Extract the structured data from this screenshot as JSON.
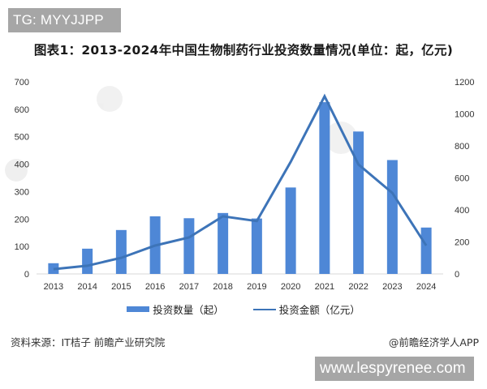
{
  "badges": {
    "top_left": "TG: MYYJJPP",
    "bottom_right": "www.lespyrenee.com"
  },
  "title": "图表1：2013-2024年中国生物制药行业投资数量情况(单位：起，亿元)",
  "footer": {
    "source": "资料来源：IT桔子 前瞻产业研究院",
    "credit": "@前瞻经济学人APP"
  },
  "legend": {
    "bar_label": "投资数量（起）",
    "line_label": "投资金额（亿元）"
  },
  "colors": {
    "bar": "#4e87d6",
    "line": "#3d74b8",
    "axis": "#d9d9d9"
  },
  "chart_data": {
    "type": "bar+line",
    "title": "图表1：2013-2024年中国生物制药行业投资数量情况(单位：起，亿元)",
    "categories": [
      "2013",
      "2014",
      "2015",
      "2016",
      "2017",
      "2018",
      "2019",
      "2020",
      "2021",
      "2022",
      "2023",
      "2024"
    ],
    "series": [
      {
        "name": "投资数量（起）",
        "type": "bar",
        "axis": "left",
        "values": [
          39,
          92,
          160,
          210,
          203,
          222,
          202,
          315,
          626,
          519,
          415,
          169
        ]
      },
      {
        "name": "投资金额（亿元）",
        "type": "line",
        "axis": "right",
        "values": [
          30,
          51,
          101,
          177,
          228,
          360,
          330,
          700,
          1110,
          684,
          506,
          177
        ]
      }
    ],
    "left_axis": {
      "ticks": [
        "0",
        "100",
        "200",
        "300",
        "400",
        "500",
        "600",
        "700"
      ],
      "ylim": [
        0,
        700
      ]
    },
    "right_axis": {
      "ticks": [
        "0",
        "200",
        "400",
        "600",
        "800",
        "1000",
        "1200"
      ],
      "ylim": [
        0,
        1200
      ]
    },
    "xlabel": "",
    "ylabel": "",
    "grid": false,
    "legend_position": "bottom"
  }
}
